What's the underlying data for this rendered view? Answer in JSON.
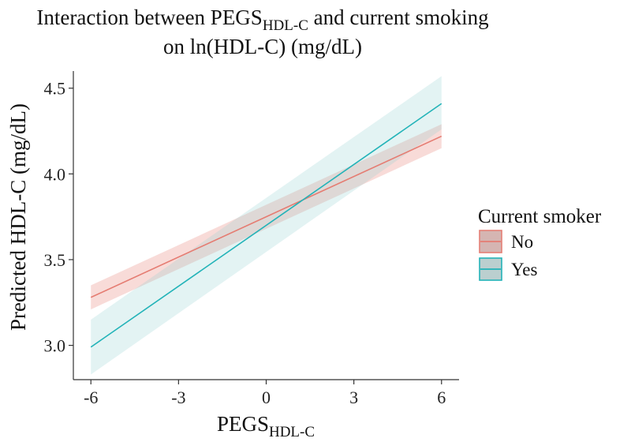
{
  "chart_data": {
    "type": "line",
    "title": {
      "line1_prefix": "Interaction between PEGS",
      "line1_subscript": "HDL-C",
      "line1_suffix": " and current smoking",
      "line2": "on ln(HDL-C) (mg/dL)"
    },
    "xlabel": {
      "main": "PEGS",
      "subscript": "HDL-C"
    },
    "ylabel": "Predicted HDL-C (mg/dL)",
    "xlim": [
      -6.6,
      6.6
    ],
    "ylim": [
      2.8,
      4.6
    ],
    "xticks": [
      -6,
      -3,
      0,
      3,
      6
    ],
    "xtick_labels": [
      "-6",
      "-3",
      "0",
      "3",
      "6"
    ],
    "yticks": [
      3.0,
      3.5,
      4.0,
      4.5
    ],
    "ytick_labels": [
      "3.0",
      "3.5",
      "4.0",
      "4.5"
    ],
    "legend": {
      "title": "Current smoker",
      "position": "right"
    },
    "series": [
      {
        "name": "No",
        "color": "#e57c72",
        "ribbon_color": "#e57c72",
        "x": [
          -6,
          6
        ],
        "y": [
          3.28,
          4.22
        ],
        "lower": [
          3.21,
          4.15
        ],
        "upper": [
          3.35,
          4.29
        ]
      },
      {
        "name": "Yes",
        "color": "#22b3b8",
        "ribbon_color": "#8fcfd1",
        "x": [
          -6,
          6
        ],
        "y": [
          2.99,
          4.41
        ],
        "lower": [
          2.83,
          4.26
        ],
        "upper": [
          3.15,
          4.57
        ]
      }
    ]
  }
}
